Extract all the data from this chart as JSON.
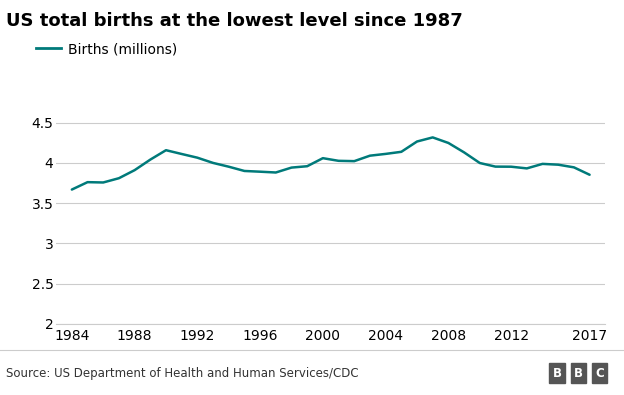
{
  "title": "US total births at the lowest level since 1987",
  "legend_label": "Births (millions)",
  "source_text": "Source: US Department of Health and Human Services/CDC",
  "line_color": "#007A7A",
  "background_color": "#ffffff",
  "years": [
    1984,
    1985,
    1986,
    1987,
    1988,
    1989,
    1990,
    1991,
    1992,
    1993,
    1994,
    1995,
    1996,
    1997,
    1998,
    1999,
    2000,
    2001,
    2002,
    2003,
    2004,
    2005,
    2006,
    2007,
    2008,
    2009,
    2010,
    2011,
    2012,
    2013,
    2014,
    2015,
    2016,
    2017
  ],
  "births": [
    3.669,
    3.761,
    3.757,
    3.81,
    3.91,
    4.041,
    4.158,
    4.111,
    4.065,
    4.0,
    3.953,
    3.9,
    3.891,
    3.881,
    3.942,
    3.959,
    4.059,
    4.026,
    4.022,
    4.09,
    4.112,
    4.138,
    4.266,
    4.317,
    4.248,
    4.131,
    3.999,
    3.954,
    3.953,
    3.932,
    3.988,
    3.978,
    3.945,
    3.853
  ],
  "xlim": [
    1983,
    2018
  ],
  "ylim": [
    2.0,
    4.65
  ],
  "yticks": [
    2.0,
    2.5,
    3.0,
    3.5,
    4.0,
    4.5
  ],
  "xticks": [
    1984,
    1988,
    1992,
    1996,
    2000,
    2004,
    2008,
    2012,
    2017
  ],
  "grid_color": "#cccccc",
  "title_fontsize": 13,
  "legend_fontsize": 10,
  "tick_fontsize": 10,
  "source_fontsize": 8.5,
  "line_width": 1.8,
  "bbc_box_color": "#555555",
  "bbc_text_color": "#ffffff"
}
